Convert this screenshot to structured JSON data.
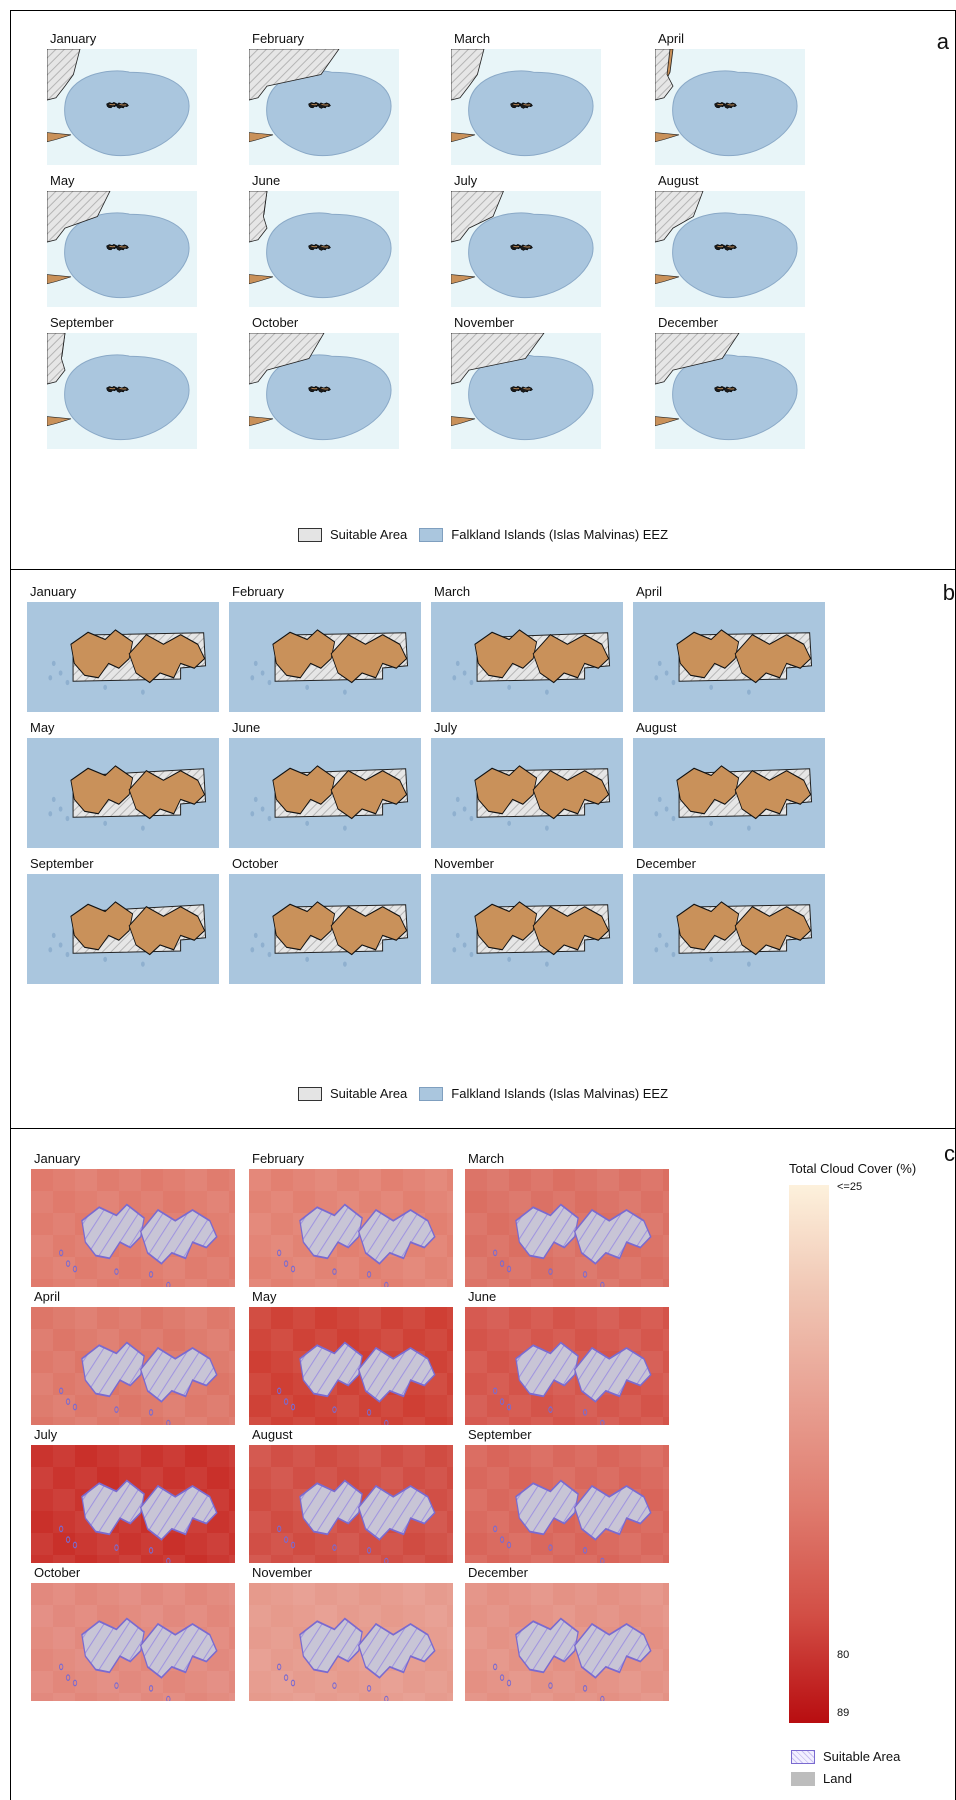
{
  "panels": {
    "a": {
      "letter": "a",
      "months": [
        "January",
        "February",
        "March",
        "April",
        "May",
        "June",
        "July",
        "August",
        "September",
        "October",
        "November",
        "December"
      ],
      "legend": {
        "suitable": "Suitable Area",
        "eez": "Falkland Islands (Islas Malvinas) EEZ"
      }
    },
    "b": {
      "letter": "b",
      "months": [
        "January",
        "February",
        "March",
        "April",
        "May",
        "June",
        "July",
        "August",
        "September",
        "October",
        "November",
        "December"
      ],
      "legend": {
        "suitable": "Suitable Area",
        "eez": "Falkland Islands (Islas Malvinas) EEZ"
      }
    },
    "c": {
      "letter": "c",
      "months": [
        "January",
        "February",
        "March",
        "April",
        "May",
        "June",
        "July",
        "August",
        "September",
        "October",
        "November",
        "December"
      ],
      "colorbar": {
        "title": "Total Cloud Cover (%)",
        "ticks": [
          "<=25",
          "80",
          "89"
        ]
      },
      "legend": {
        "suitable": "Suitable Area",
        "land": "Land"
      }
    }
  },
  "colors": {
    "eez": "#aac6de",
    "sea_light": "#e8f5f8",
    "land": "#c9915a",
    "suitable": "#d8d8d8",
    "cloud_low": "#fdf1dc",
    "cloud_high": "#b80d10",
    "suitable_c": "#7a6ad0"
  }
}
